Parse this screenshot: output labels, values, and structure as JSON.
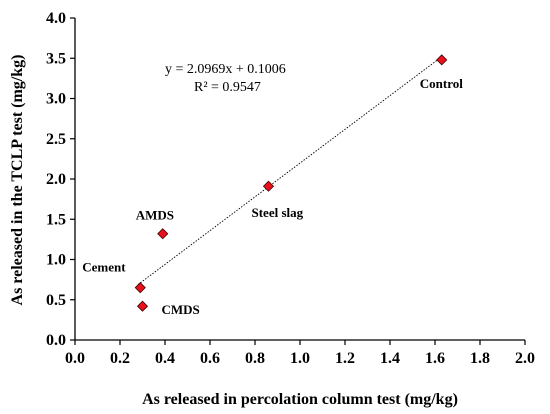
{
  "chart_data": {
    "type": "scatter",
    "xlabel": "As released in percolation column test (mg/kg)",
    "ylabel": "As released in the TCLP test (mg/kg)",
    "xlim": [
      0.0,
      2.0
    ],
    "ylim": [
      0.0,
      4.0
    ],
    "x_ticks": [
      "0.0",
      "0.2",
      "0.4",
      "0.6",
      "0.8",
      "1.0",
      "1.2",
      "1.4",
      "1.6",
      "1.8",
      "2.0"
    ],
    "y_ticks": [
      "0.0",
      "0.5",
      "1.0",
      "1.5",
      "2.0",
      "2.5",
      "3.0",
      "3.5",
      "4.0"
    ],
    "grid": false,
    "points": [
      {
        "label": "Control",
        "x": 1.63,
        "y": 3.48
      },
      {
        "label": "Steel slag",
        "x": 0.86,
        "y": 1.91
      },
      {
        "label": "AMDS",
        "x": 0.39,
        "y": 1.32
      },
      {
        "label": "Cement",
        "x": 0.29,
        "y": 0.65
      },
      {
        "label": "CMDS",
        "x": 0.3,
        "y": 0.42
      }
    ],
    "trendline": {
      "slope": 2.0969,
      "intercept": 0.1006,
      "equation": "y = 2.0969x + 0.1006",
      "r2": "R² = 0.9547"
    },
    "colors": {
      "marker_fill": "#e8101b",
      "marker_stroke": "#3a0000",
      "axis": "#000000",
      "trendline": "#000000"
    }
  }
}
